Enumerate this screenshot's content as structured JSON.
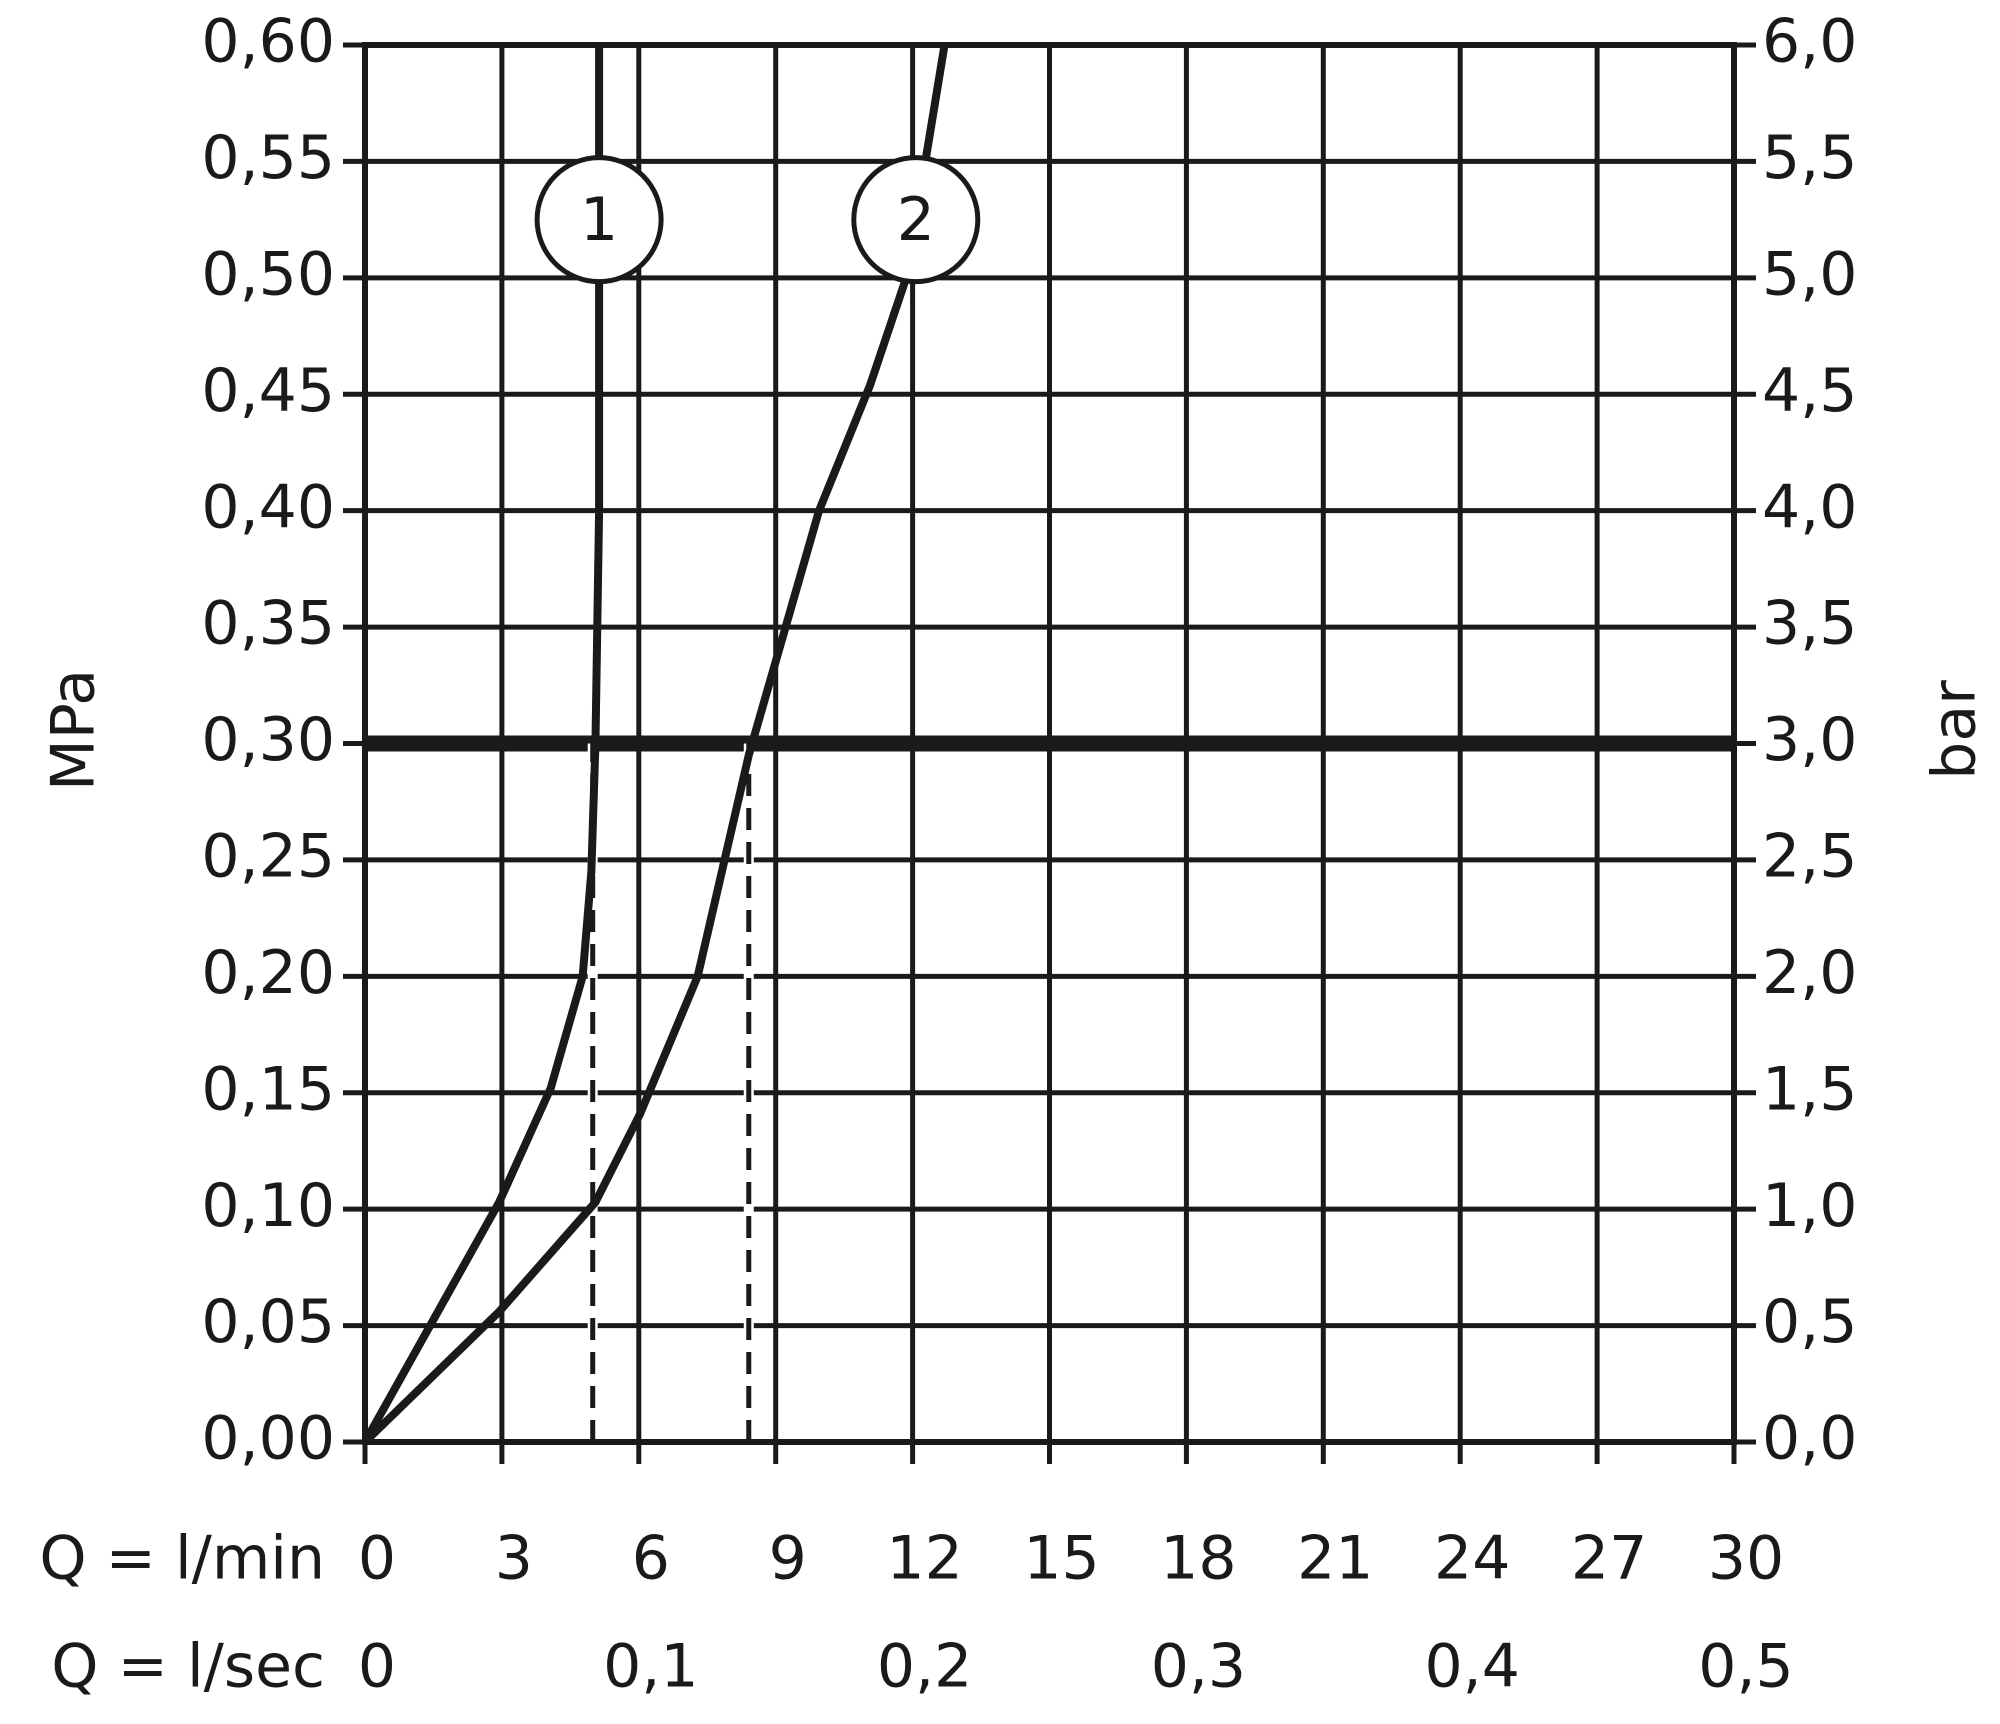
{
  "chart_data": {
    "type": "line",
    "y_label": "MPa",
    "y2_label": "bar",
    "x_label": "Q = l/min",
    "x2_label": "Q = l/sec",
    "xlim": [
      0,
      30
    ],
    "xticks": [
      0,
      3,
      6,
      9,
      12,
      15,
      18,
      21,
      24,
      27,
      30
    ],
    "x2lim": [
      0,
      0.5
    ],
    "x2ticks": [
      0,
      {
        "value": 0.1,
        "label": "0,1"
      },
      {
        "value": 0.2,
        "label": "0,2"
      },
      {
        "value": 0.3,
        "label": "0,3"
      },
      {
        "value": 0.4,
        "label": "0,4"
      },
      {
        "value": 0.5,
        "label": "0,5"
      }
    ],
    "ylim": [
      0,
      0.6
    ],
    "yticks": [
      {
        "value": 0,
        "label": "0,00"
      },
      {
        "value": 0.05,
        "label": "0,05"
      },
      {
        "value": 0.1,
        "label": "0,10"
      },
      {
        "value": 0.15,
        "label": "0,15"
      },
      {
        "value": 0.2,
        "label": "0,20"
      },
      {
        "value": 0.25,
        "label": "0,25"
      },
      {
        "value": 0.3,
        "label": "0,30"
      },
      {
        "value": 0.35,
        "label": "0,35"
      },
      {
        "value": 0.4,
        "label": "0,40"
      },
      {
        "value": 0.45,
        "label": "0,45"
      },
      {
        "value": 0.5,
        "label": "0,50"
      },
      {
        "value": 0.55,
        "label": "0,55"
      },
      {
        "value": 0.6,
        "label": "0,60"
      }
    ],
    "y2lim": [
      0,
      6
    ],
    "y2ticks": [
      {
        "value": 0,
        "label": "0,0"
      },
      {
        "value": 0.5,
        "label": "0,5"
      },
      {
        "value": 1,
        "label": "1,0"
      },
      {
        "value": 1.5,
        "label": "1,5"
      },
      {
        "value": 2,
        "label": "2,0"
      },
      {
        "value": 2.5,
        "label": "2,5"
      },
      {
        "value": 3,
        "label": "3,0"
      },
      {
        "value": 3.5,
        "label": "3,5"
      },
      {
        "value": 4,
        "label": "4,0"
      },
      {
        "value": 4.5,
        "label": "4,5"
      },
      {
        "value": 5,
        "label": "5,0"
      },
      {
        "value": 5.5,
        "label": "5,5"
      },
      {
        "value": 6,
        "label": "6,0"
      }
    ],
    "grid": true,
    "reference_y": 0.3,
    "reference_x": [
      {
        "x": 4.99,
        "y": 0.3
      },
      {
        "x": 8.41,
        "y": 0.3
      }
    ],
    "series": [
      {
        "name": "1",
        "color": "#1a1a1a",
        "x": [
          0,
          2.94,
          4.07,
          4.77,
          4.96,
          5.05,
          5.13,
          5.13
        ],
        "values": [
          0,
          0.103,
          0.152,
          0.2,
          0.245,
          0.3,
          0.4,
          0.6
        ]
      },
      {
        "name": "2",
        "color": "#1a1a1a",
        "x": [
          0,
          2.94,
          5.05,
          6.03,
          7.29,
          8.41,
          9.95,
          11.07,
          11.86,
          12.7
        ],
        "values": [
          0,
          0.056,
          0.103,
          0.141,
          0.2,
          0.295,
          0.4,
          0.454,
          0.5,
          0.6
        ]
      }
    ]
  }
}
